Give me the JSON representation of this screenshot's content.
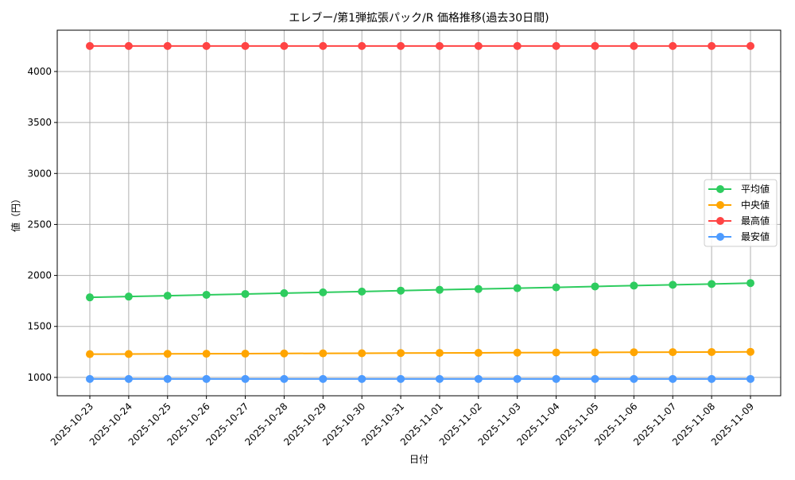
{
  "chart_data": {
    "type": "line",
    "title": "エレブー/第1弾拡張パック/R 価格推移(過去30日間)",
    "xlabel": "日付",
    "ylabel": "値（円）",
    "ylim": [
      820,
      4405
    ],
    "yticks": [
      1000,
      1500,
      2000,
      2500,
      3000,
      3500,
      4000
    ],
    "grid": true,
    "legend_position": "right",
    "x": [
      "2025-10-23",
      "2025-10-24",
      "2025-10-25",
      "2025-10-26",
      "2025-10-27",
      "2025-10-28",
      "2025-10-29",
      "2025-10-30",
      "2025-10-31",
      "2025-11-01",
      "2025-11-02",
      "2025-11-03",
      "2025-11-04",
      "2025-11-05",
      "2025-11-06",
      "2025-11-07",
      "2025-11-08",
      "2025-11-09"
    ],
    "series": [
      {
        "name": "平均値",
        "color": "#2ecc5f",
        "values": [
          1785,
          1793,
          1801,
          1810,
          1818,
          1826,
          1834,
          1842,
          1851,
          1859,
          1867,
          1875,
          1883,
          1892,
          1900,
          1908,
          1916,
          1925
        ]
      },
      {
        "name": "中央値",
        "color": "#ffa500",
        "values": [
          1228,
          1229,
          1231,
          1232,
          1233,
          1235,
          1236,
          1237,
          1239,
          1240,
          1241,
          1243,
          1244,
          1245,
          1247,
          1248,
          1249,
          1251
        ]
      },
      {
        "name": "最高値",
        "color": "#ff4444",
        "values": [
          4250,
          4250,
          4250,
          4250,
          4250,
          4250,
          4250,
          4250,
          4250,
          4250,
          4250,
          4250,
          4250,
          4250,
          4250,
          4250,
          4250,
          4250
        ]
      },
      {
        "name": "最安値",
        "color": "#4d9bff",
        "values": [
          985,
          985,
          985,
          985,
          985,
          985,
          985,
          985,
          985,
          985,
          985,
          985,
          985,
          985,
          985,
          985,
          985,
          985
        ]
      }
    ]
  }
}
